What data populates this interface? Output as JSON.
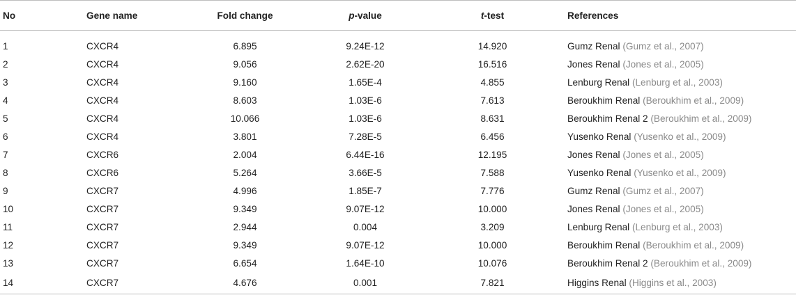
{
  "table": {
    "headers": {
      "no": "No",
      "gene": "Gene name",
      "fold": "Fold change",
      "p_italic": "p",
      "p_rest": "-value",
      "t_italic": "t",
      "t_rest": "-test",
      "refs": "References"
    },
    "rows": [
      {
        "no": "1",
        "gene": "CXCR4",
        "fold": "6.895",
        "p": "9.24E-12",
        "t": "14.920",
        "ref_name": "Gumz Renal",
        "ref_cite": "(Gumz et al., 2007)"
      },
      {
        "no": "2",
        "gene": "CXCR4",
        "fold": "9.056",
        "p": "2.62E-20",
        "t": "16.516",
        "ref_name": "Jones Renal",
        "ref_cite": "(Jones et al., 2005)"
      },
      {
        "no": "3",
        "gene": "CXCR4",
        "fold": "9.160",
        "p": "1.65E-4",
        "t": "4.855",
        "ref_name": "Lenburg Renal",
        "ref_cite": "(Lenburg et al., 2003)"
      },
      {
        "no": "4",
        "gene": "CXCR4",
        "fold": "8.603",
        "p": "1.03E-6",
        "t": "7.613",
        "ref_name": "Beroukhim Renal",
        "ref_cite": "(Beroukhim et al., 2009)"
      },
      {
        "no": "5",
        "gene": "CXCR4",
        "fold": "10.066",
        "p": "1.03E-6",
        "t": "8.631",
        "ref_name": "Beroukhim Renal 2",
        "ref_cite": "(Beroukhim et al., 2009)"
      },
      {
        "no": "6",
        "gene": "CXCR4",
        "fold": "3.801",
        "p": "7.28E-5",
        "t": "6.456",
        "ref_name": "Yusenko Renal",
        "ref_cite": "(Yusenko et al., 2009)"
      },
      {
        "no": "7",
        "gene": "CXCR6",
        "fold": "2.004",
        "p": "6.44E-16",
        "t": "12.195",
        "ref_name": "Jones Renal",
        "ref_cite": "(Jones et al., 2005)"
      },
      {
        "no": "8",
        "gene": "CXCR6",
        "fold": "5.264",
        "p": "3.66E-5",
        "t": "7.588",
        "ref_name": "Yusenko Renal",
        "ref_cite": "(Yusenko et al., 2009)"
      },
      {
        "no": "9",
        "gene": "CXCR7",
        "fold": "4.996",
        "p": "1.85E-7",
        "t": "7.776",
        "ref_name": "Gumz Renal",
        "ref_cite": "(Gumz et al., 2007)"
      },
      {
        "no": "10",
        "gene": "CXCR7",
        "fold": "9.349",
        "p": "9.07E-12",
        "t": "10.000",
        "ref_name": "Jones Renal",
        "ref_cite": "(Jones et al., 2005)"
      },
      {
        "no": "11",
        "gene": "CXCR7",
        "fold": "2.944",
        "p": "0.004",
        "t": "3.209",
        "ref_name": "Lenburg Renal",
        "ref_cite": "(Lenburg et al., 2003)"
      },
      {
        "no": "12",
        "gene": "CXCR7",
        "fold": "9.349",
        "p": "9.07E-12",
        "t": "10.000",
        "ref_name": "Beroukhim Renal",
        "ref_cite": "(Beroukhim et al., 2009)"
      },
      {
        "no": "13",
        "gene": "CXCR7",
        "fold": "6.654",
        "p": "1.64E-10",
        "t": "10.076",
        "ref_name": "Beroukhim Renal 2",
        "ref_cite": "(Beroukhim et al., 2009)"
      },
      {
        "no": "14",
        "gene": "CXCR7",
        "fold": "4.676",
        "p": "0.001",
        "t": "7.821",
        "ref_name": "Higgins Renal",
        "ref_cite": "(Higgins et al., 2003)"
      }
    ]
  },
  "colors": {
    "text": "#222222",
    "citation": "#8a8a8a",
    "rule": "#bdbdbd"
  }
}
